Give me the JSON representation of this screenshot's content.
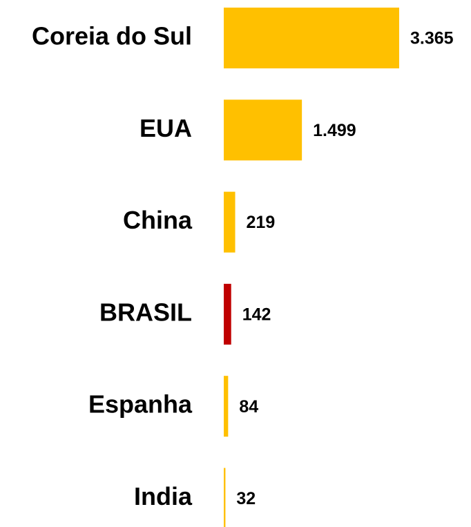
{
  "chart_data": {
    "type": "bar",
    "orientation": "horizontal",
    "categories": [
      "Coreia do Sul",
      "EUA",
      "China",
      "BRASIL",
      "Espanha",
      "India"
    ],
    "values": [
      3365,
      1499,
      219,
      142,
      84,
      32
    ],
    "value_labels": [
      "3.365",
      "1.499",
      "219",
      "142",
      "84",
      "32"
    ],
    "colors": [
      "#FFC000",
      "#FFC000",
      "#FFC000",
      "#C00000",
      "#FFC000",
      "#FFC000"
    ]
  }
}
